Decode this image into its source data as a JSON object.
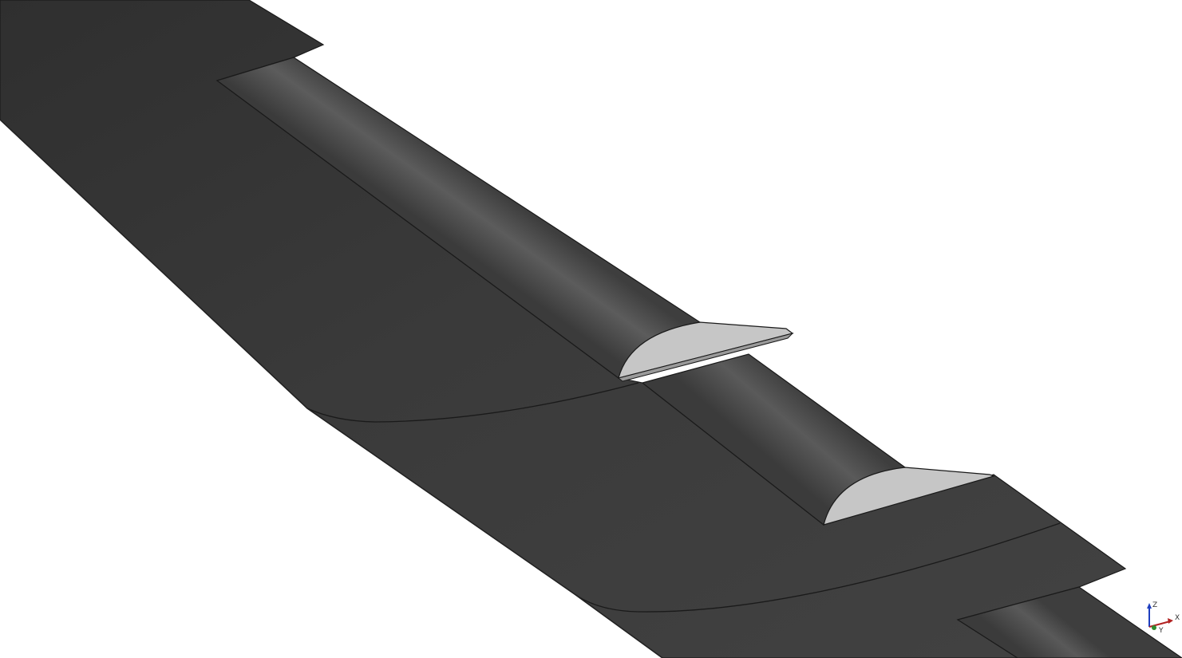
{
  "viewport": {
    "background_color": "#ffffff",
    "model_color": "#3d3d3d",
    "model_highlight_color": "#5e5e5e",
    "section_face_color": "#c6c6c6",
    "edge_color": "#1a1a1a"
  },
  "axis_triad": {
    "x_label": "X",
    "y_label": "Y",
    "z_label": "Z",
    "x_color": "#b22222",
    "y_color": "#2e8b2e",
    "z_color": "#1f3fbf"
  }
}
